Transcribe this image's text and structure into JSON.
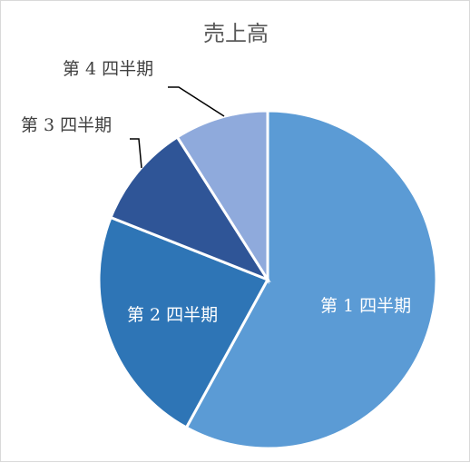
{
  "chart_data": {
    "type": "pie",
    "title": "売上高",
    "categories": [
      "第 1 四半期",
      "第 2 四半期",
      "第 3 四半期",
      "第 4 四半期"
    ],
    "values": [
      58,
      23,
      10,
      9
    ],
    "start_angle_deg": 0,
    "direction": "clockwise",
    "colors": [
      "#5b9bd5",
      "#2e75b6",
      "#2f5597",
      "#8faadc"
    ],
    "label_placement": [
      "inside",
      "inside",
      "outside",
      "outside"
    ],
    "legend": "none"
  }
}
